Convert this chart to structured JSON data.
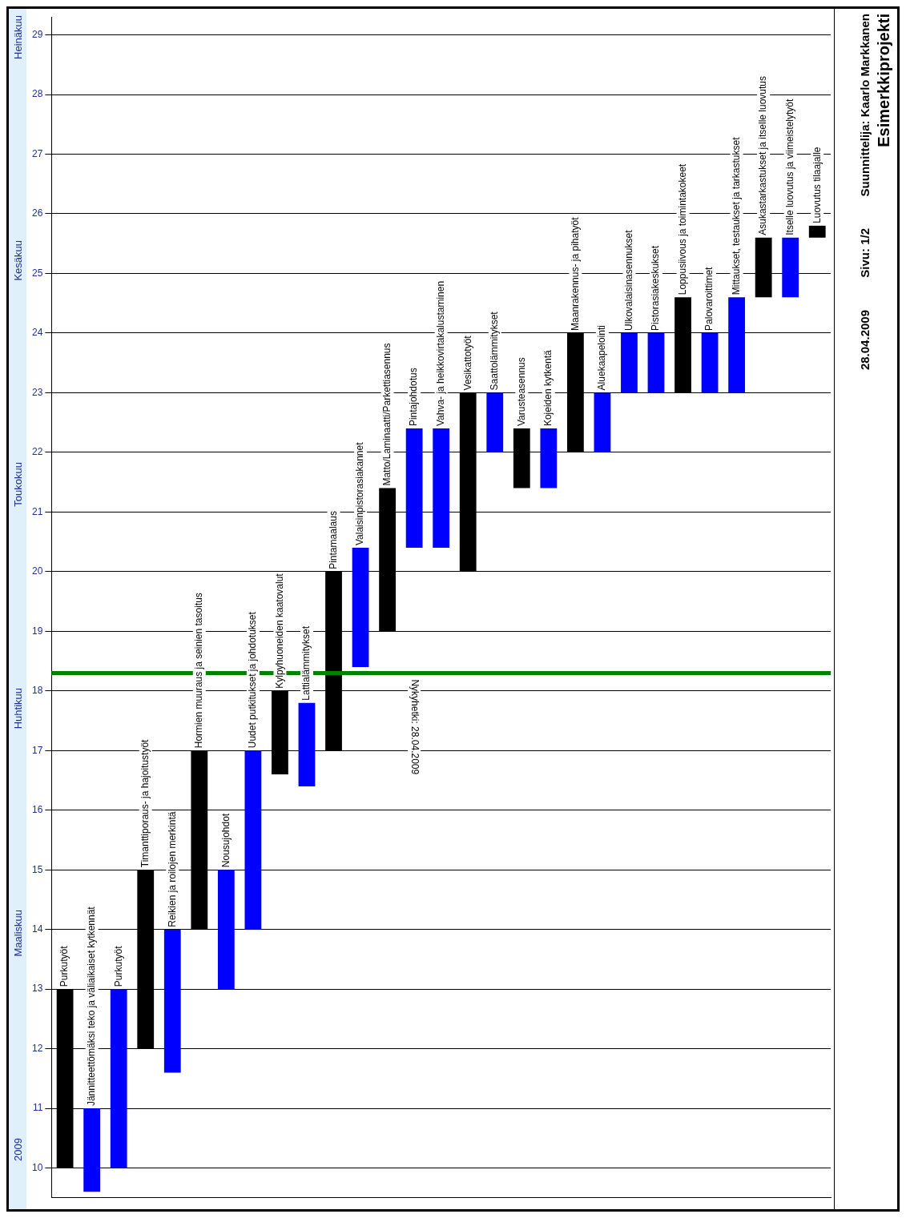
{
  "chart_data": {
    "type": "bar",
    "title": "Esimerkkiprojekti",
    "subtitle": "Suunnittelija: Kaarlo Markkanen",
    "categories": [
      "Purkutyöt",
      "Jännitteettömäksi teko ja väliaikaiset kytkennät",
      "Purkutyöt",
      "Timanttiporaus- ja hajoitustyöt",
      "Reikien ja roilojen merkintä",
      "Hormien muuraus ja seinien tasoitus",
      "Nousujohdot",
      "Uudet putkitukset ja johdotukset",
      "Kylpyhuoneiden kaatovalut",
      "Lattialämmitykset",
      "Pintamaalaus",
      "Valaisinpistorasiakannet",
      "Matto/Laminaatti/Parkettiasennus",
      "Pintajohdotus",
      "Vahva- ja heikkovirtakalustaminen",
      "Vesikattotyöt",
      "Saattolämmitykset",
      "Varusteasennus",
      "Kojeiden kytkentä",
      "Maanrakennus- ja pihatyöt",
      "Aluekaapelointi",
      "Ulkovalaisinasennukset",
      "Pistorasiakeskukset",
      "Loppusiivous ja toimintakokeet",
      "Palovaroittimet",
      "Mittaukset, testaukset ja tarkastukset",
      "Asukastarkastukset ja itselle luovutus",
      "Itselle luovutus ja viimeistelytyöt",
      "Luovutus tilaajalle"
    ],
    "base": [
      10,
      9.6,
      10,
      12,
      11.6,
      14,
      13,
      14,
      16.6,
      16.4,
      17,
      18.4,
      19,
      20.4,
      20.4,
      20,
      22,
      21.4,
      21.4,
      22,
      22,
      23,
      23,
      23,
      23,
      23,
      24.6,
      24.6,
      25.6
    ],
    "values": [
      3,
      1.4,
      3,
      3,
      2.4,
      3,
      2,
      3,
      1.4,
      1.4,
      3,
      2,
      2.4,
      2,
      2,
      3,
      1,
      1,
      1,
      2,
      1,
      1,
      1,
      1.6,
      1,
      1.6,
      1,
      1,
      0.2
    ],
    "colors": [
      "#000000",
      "#0000ff",
      "#0000ff",
      "#000000",
      "#0000ff",
      "#000000",
      "#0000ff",
      "#0000ff",
      "#000000",
      "#0000ff",
      "#000000",
      "#0000ff",
      "#000000",
      "#0000ff",
      "#0000ff",
      "#000000",
      "#0000ff",
      "#000000",
      "#0000ff",
      "#000000",
      "#0000ff",
      "#0000ff",
      "#0000ff",
      "#000000",
      "#0000ff",
      "#0000ff",
      "#000000",
      "#0000ff",
      "#000000"
    ],
    "ylim": [
      9.5,
      29.3
    ],
    "yticks": [
      10,
      11,
      12,
      13,
      14,
      15,
      16,
      17,
      18,
      19,
      20,
      21,
      22,
      23,
      24,
      25,
      26,
      27,
      28,
      29
    ],
    "ref_lines": [
      {
        "axis": "y",
        "value": 18.3,
        "label": "Nykyhetki: 28.04.2009",
        "color": "#008000"
      }
    ],
    "annotations": [
      "Sivu: 1/2",
      "28.04.2009",
      "2009",
      "Maaliskuu",
      "Huhtikuu",
      "Toukokuu",
      "Kesäkuu",
      "Heinäkuu"
    ],
    "grid": "y",
    "tick_labels": "y"
  }
}
